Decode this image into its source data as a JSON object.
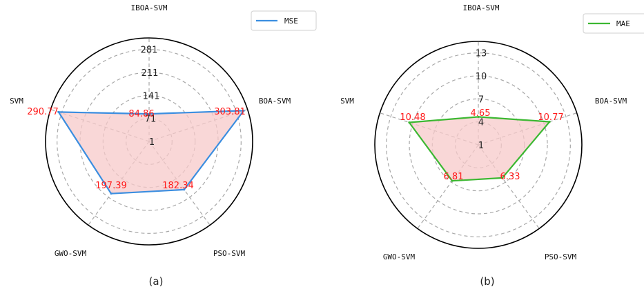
{
  "chart_data": [
    {
      "type": "radar",
      "panel_label": "(a)",
      "categories": [
        "IBOA-SVM",
        "BOA-SVM",
        "PSO-SVM",
        "GWO-SVM",
        "SVM"
      ],
      "series": [
        {
          "name": "MSE",
          "values": [
            84.86,
            303.81,
            182.34,
            197.39,
            290.77
          ],
          "value_labels": [
            "84.86",
            "303.81",
            "182.34",
            "197.39",
            "290.77"
          ],
          "line_color": "#3b8ee0",
          "fill_color": "#f7c9c9"
        }
      ],
      "radial_ticks": [
        1,
        71,
        141,
        211,
        281
      ],
      "radial_tick_labels": [
        "1",
        "71",
        "141",
        "211",
        "281"
      ],
      "rlim": [
        1,
        316
      ],
      "grid": true,
      "legend_position": "top-right",
      "label_color": "#ff1a1a"
    },
    {
      "type": "radar",
      "panel_label": "(b)",
      "categories": [
        "IBOA-SVM",
        "BOA-SVM",
        "PSO-SVM",
        "GWO-SVM",
        "SVM"
      ],
      "series": [
        {
          "name": "MAE",
          "values": [
            4.65,
            10.77,
            6.33,
            6.81,
            10.48
          ],
          "value_labels": [
            "4.65",
            "10.77",
            "6.33",
            "6.81",
            "10.48"
          ],
          "line_color": "#3cb832",
          "fill_color": "#f7c9c9"
        }
      ],
      "radial_ticks": [
        1,
        4,
        7,
        10,
        13
      ],
      "radial_tick_labels": [
        "1",
        "4",
        "7",
        "10",
        "13"
      ],
      "rlim": [
        1,
        14.5
      ],
      "grid": true,
      "legend_position": "top-right",
      "label_color": "#ff1a1a"
    }
  ]
}
